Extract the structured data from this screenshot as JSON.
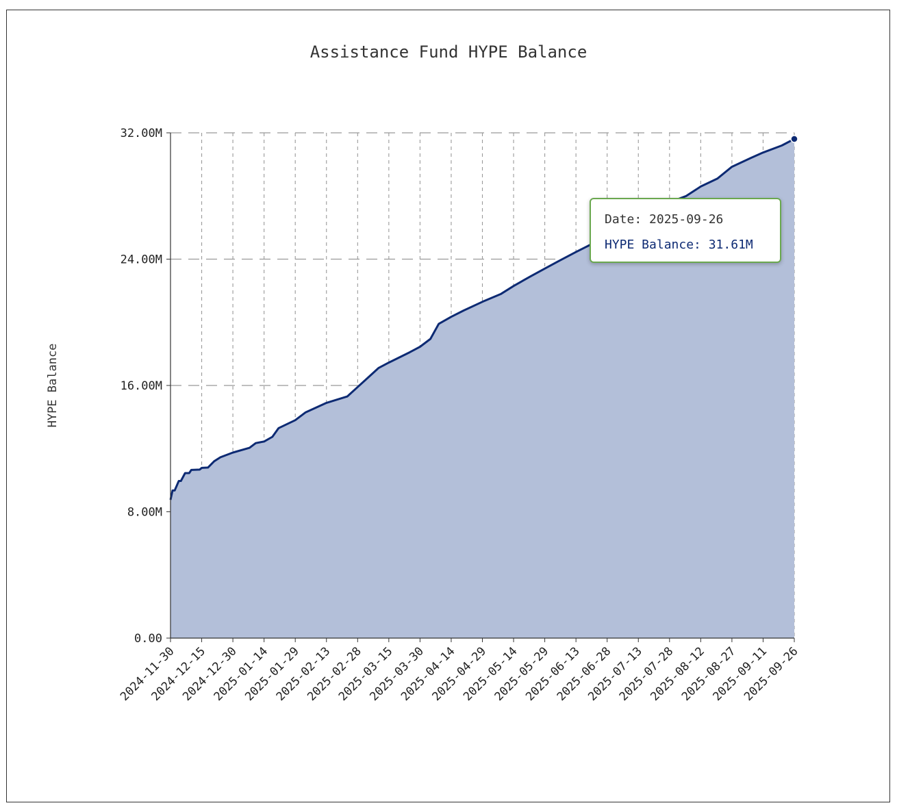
{
  "chart_data": {
    "type": "area",
    "title": "Assistance Fund HYPE Balance",
    "xlabel": "",
    "ylabel": "HYPE Balance",
    "ylim": [
      0,
      32000000
    ],
    "yticks": [
      "0.00",
      "8.00M",
      "16.00M",
      "24.00M",
      "32.00M"
    ],
    "ytick_values": [
      0,
      8000000,
      16000000,
      24000000,
      32000000
    ],
    "xlim": [
      "2024-11-30",
      "2025-09-26"
    ],
    "xticks": [
      "2024-11-30",
      "2024-12-15",
      "2024-12-30",
      "2025-01-14",
      "2025-01-29",
      "2025-02-13",
      "2025-02-28",
      "2025-03-15",
      "2025-03-30",
      "2025-04-14",
      "2025-04-29",
      "2025-05-14",
      "2025-05-29",
      "2025-06-13",
      "2025-06-28",
      "2025-07-13",
      "2025-07-28",
      "2025-08-12",
      "2025-08-27",
      "2025-09-11",
      "2025-09-26"
    ],
    "grid": true,
    "line_color": "#0d2a73",
    "fill_color": "#b3bfd9",
    "x": [
      "2024-11-30",
      "2024-12-01",
      "2024-12-02",
      "2024-12-04",
      "2024-12-05",
      "2024-12-07",
      "2024-12-09",
      "2024-12-10",
      "2024-12-14",
      "2024-12-15",
      "2024-12-18",
      "2024-12-21",
      "2024-12-24",
      "2024-12-30",
      "2025-01-07",
      "2025-01-10",
      "2025-01-14",
      "2025-01-18",
      "2025-01-21",
      "2025-01-29",
      "2025-02-03",
      "2025-02-13",
      "2025-02-23",
      "2025-02-28",
      "2025-03-05",
      "2025-03-10",
      "2025-03-15",
      "2025-03-25",
      "2025-03-30",
      "2025-04-04",
      "2025-04-08",
      "2025-04-14",
      "2025-04-20",
      "2025-04-29",
      "2025-05-08",
      "2025-05-14",
      "2025-05-22",
      "2025-05-29",
      "2025-06-05",
      "2025-06-13",
      "2025-06-28",
      "2025-07-13",
      "2025-07-28",
      "2025-08-05",
      "2025-08-12",
      "2025-08-20",
      "2025-08-27",
      "2025-09-05",
      "2025-09-11",
      "2025-09-20",
      "2025-09-26"
    ],
    "y": [
      8.76,
      9.35,
      9.35,
      9.95,
      9.95,
      10.45,
      10.45,
      10.65,
      10.67,
      10.78,
      10.8,
      11.2,
      11.45,
      11.75,
      12.05,
      12.35,
      12.45,
      12.75,
      13.3,
      13.8,
      14.3,
      14.9,
      15.3,
      15.9,
      16.5,
      17.1,
      17.45,
      18.1,
      18.45,
      18.95,
      19.9,
      20.35,
      20.75,
      21.3,
      21.8,
      22.3,
      22.9,
      23.4,
      23.9,
      24.45,
      25.45,
      26.5,
      27.6,
      28.0,
      28.6,
      29.1,
      29.85,
      30.4,
      30.75,
      31.2,
      31.61
    ],
    "y_unit": "M",
    "tooltip": {
      "date_label": "Date: 2025-09-26",
      "value_label": "HYPE Balance: 31.61M",
      "border_color": "#6aa84f"
    }
  }
}
